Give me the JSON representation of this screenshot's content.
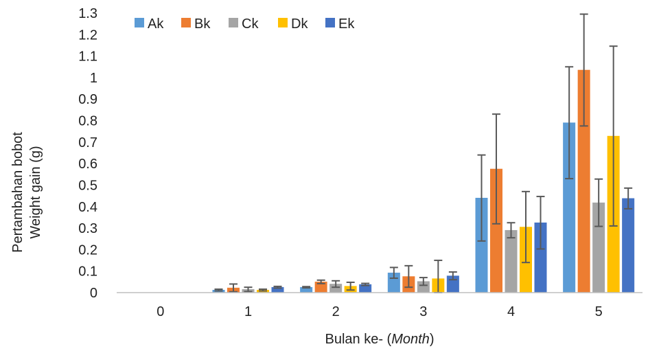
{
  "chart_data": {
    "type": "bar",
    "categories": [
      "0",
      "1",
      "2",
      "3",
      "4",
      "5"
    ],
    "series": [
      {
        "name": "Ak",
        "color": "#5B9BD5",
        "values": [
          0,
          0.012,
          0.025,
          0.092,
          0.44,
          0.79
        ],
        "errors": [
          0,
          0.004,
          0.003,
          0.025,
          0.2,
          0.26
        ]
      },
      {
        "name": "Bk",
        "color": "#ED7D31",
        "values": [
          0,
          0.022,
          0.05,
          0.075,
          0.575,
          1.035
        ],
        "errors": [
          0,
          0.018,
          0.008,
          0.05,
          0.255,
          0.26
        ]
      },
      {
        "name": "Ck",
        "color": "#A5A5A5",
        "values": [
          0,
          0.015,
          0.04,
          0.052,
          0.29,
          0.418
        ],
        "errors": [
          0,
          0.01,
          0.015,
          0.018,
          0.035,
          0.11
        ]
      },
      {
        "name": "Dk",
        "color": "#FFC000",
        "values": [
          0,
          0.012,
          0.03,
          0.065,
          0.305,
          0.728
        ],
        "errors": [
          0,
          0.004,
          0.018,
          0.085,
          0.165,
          0.418
        ]
      },
      {
        "name": "Ek",
        "color": "#4472C4",
        "values": [
          0,
          0.025,
          0.038,
          0.078,
          0.325,
          0.438
        ],
        "errors": [
          0,
          0.004,
          0.005,
          0.018,
          0.122,
          0.048
        ]
      }
    ],
    "yticks": [
      "0",
      "0.1",
      "0.2",
      "0.3",
      "0.4",
      "0.5",
      "0.6",
      "0.7",
      "0.8",
      "0.9",
      "1",
      "1.1",
      "1.2",
      "1.3"
    ],
    "ylim": [
      0,
      1.3
    ],
    "ylabel_line1": "Pertambahan bobot",
    "ylabel_line2": "Weight gain (g)",
    "xlabel_prefix": "Bulan ke- (",
    "xlabel_italic": "Month",
    "xlabel_suffix": ")",
    "legend_position": "top-left",
    "grid": false
  }
}
